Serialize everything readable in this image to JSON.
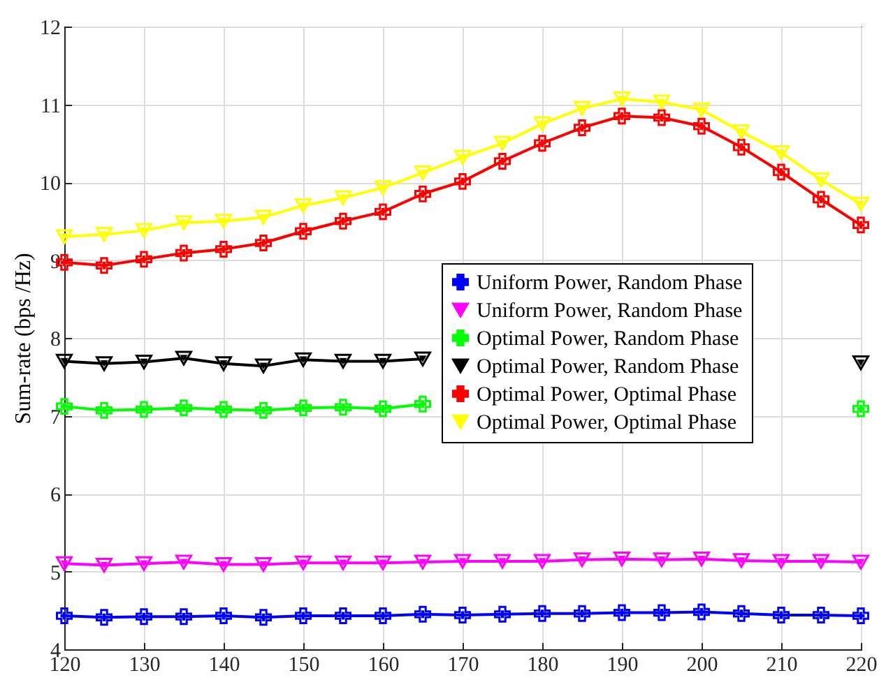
{
  "chart_data": {
    "type": "line",
    "ylabel": "Sum-rate (bps /Hz)",
    "x": [
      120,
      125,
      130,
      135,
      140,
      145,
      150,
      155,
      160,
      165,
      170,
      175,
      180,
      185,
      190,
      195,
      200,
      205,
      210,
      215,
      220
    ],
    "xlim": [
      120,
      220
    ],
    "xticks": [
      120,
      130,
      140,
      150,
      160,
      170,
      180,
      190,
      200,
      210,
      220
    ],
    "ylim": [
      4,
      12
    ],
    "yticks": [
      4,
      5,
      6,
      7,
      8,
      9,
      10,
      11,
      12
    ],
    "grid": true,
    "legend": "right",
    "series": [
      {
        "name": "Uniform Power, Random Phase",
        "color": "#0000ff",
        "marker": "cross",
        "values": [
          4.43,
          4.41,
          4.42,
          4.42,
          4.43,
          4.41,
          4.43,
          4.43,
          4.43,
          4.45,
          4.44,
          4.45,
          4.46,
          4.46,
          4.47,
          4.47,
          4.48,
          4.46,
          4.44,
          4.44,
          4.43
        ]
      },
      {
        "name": "Uniform Power, Random Phase",
        "color": "#ff00ff",
        "marker": "triangle",
        "values": [
          5.1,
          5.08,
          5.1,
          5.12,
          5.09,
          5.09,
          5.11,
          5.11,
          5.11,
          5.12,
          5.13,
          5.13,
          5.13,
          5.15,
          5.16,
          5.15,
          5.16,
          5.14,
          5.13,
          5.13,
          5.12
        ]
      },
      {
        "name": "Optimal Power, Random Phase",
        "color": "#00ff00",
        "marker": "cross",
        "values": [
          7.12,
          7.07,
          7.08,
          7.1,
          7.08,
          7.07,
          7.1,
          7.11,
          7.09,
          7.15,
          null,
          null,
          null,
          null,
          null,
          null,
          null,
          null,
          null,
          null,
          7.09
        ]
      },
      {
        "name": "Optimal Power, Random Phase",
        "color": "#000000",
        "marker": "triangle",
        "values": [
          7.7,
          7.67,
          7.69,
          7.74,
          7.67,
          7.64,
          7.72,
          7.7,
          7.7,
          7.73,
          null,
          null,
          null,
          null,
          null,
          null,
          null,
          null,
          null,
          null,
          7.68
        ]
      },
      {
        "name": "Optimal Power, Optimal Phase",
        "color": "#ff0000",
        "marker": "cross",
        "values": [
          8.97,
          8.93,
          9.01,
          9.09,
          9.14,
          9.22,
          9.37,
          9.5,
          9.62,
          9.85,
          10.01,
          10.27,
          10.5,
          10.7,
          10.85,
          10.83,
          10.72,
          10.45,
          10.13,
          9.78,
          9.45
        ]
      },
      {
        "name": "Optimal Power, Optimal Phase",
        "color": "#ffff00",
        "marker": "triangle",
        "values": [
          9.3,
          9.33,
          9.38,
          9.48,
          9.5,
          9.55,
          9.7,
          9.8,
          9.93,
          10.12,
          10.32,
          10.5,
          10.75,
          10.95,
          11.07,
          11.03,
          10.93,
          10.65,
          10.38,
          10.03,
          9.72
        ]
      }
    ]
  }
}
